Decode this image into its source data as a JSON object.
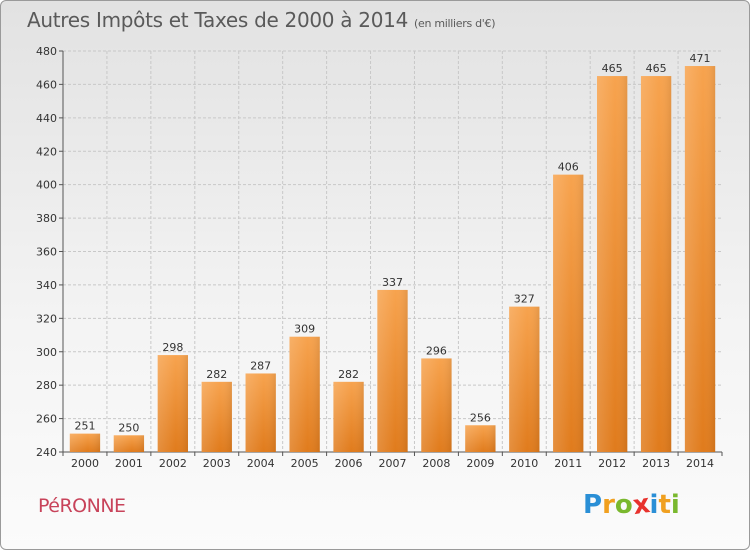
{
  "chart_data": {
    "type": "bar",
    "title": "Autres Impôts et Taxes de 2000 à 2014",
    "subtitle": "(en milliers d'€)",
    "categories": [
      "2000",
      "2001",
      "2002",
      "2003",
      "2004",
      "2005",
      "2006",
      "2007",
      "2008",
      "2009",
      "2010",
      "2011",
      "2012",
      "2013",
      "2014"
    ],
    "values": [
      251,
      250,
      298,
      282,
      287,
      309,
      282,
      337,
      296,
      256,
      327,
      406,
      465,
      465,
      471
    ],
    "ylim": [
      240,
      480
    ],
    "yticks": [
      240,
      260,
      280,
      300,
      320,
      340,
      360,
      380,
      400,
      420,
      440,
      460,
      480
    ],
    "grid": true,
    "bar_color_light": "#f7a34e",
    "bar_color_dark": "#e07b1c"
  },
  "footer": {
    "town": "PéRONNE",
    "logo_letters": [
      {
        "ch": "P",
        "color": "#2a8fd6"
      },
      {
        "ch": "r",
        "color": "#f0a020"
      },
      {
        "ch": "o",
        "color": "#7ab82e"
      },
      {
        "ch": "x",
        "color": "#e8322d"
      },
      {
        "ch": "i",
        "color": "#2a8fd6"
      },
      {
        "ch": "t",
        "color": "#f0a020"
      },
      {
        "ch": "i",
        "color": "#7ab82e"
      }
    ]
  }
}
